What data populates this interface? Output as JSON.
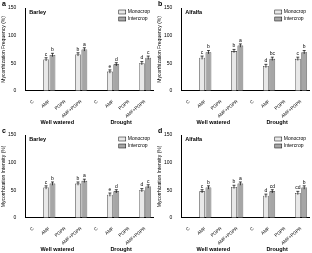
{
  "chart_data": [
    {
      "type": "bar",
      "panel": "a",
      "title": "Barley",
      "y_label": "Mycorrhization Frequency (%)",
      "categories": [
        "C",
        "AMF",
        "PGPR",
        "AMF+PGPR",
        "C",
        "AMF",
        "PGPR",
        "AMF+PGPR"
      ],
      "groups": [
        "Well watered",
        "Drought"
      ],
      "series": [
        {
          "name": "Monocrop",
          "color": "#e8e8e8",
          "values": [
            0,
            57,
            0,
            66,
            0,
            35,
            0,
            50
          ],
          "errors": [
            null,
            3,
            null,
            3,
            null,
            3,
            null,
            3
          ],
          "letters": [
            null,
            "c",
            null,
            "b",
            null,
            "e",
            null,
            "d"
          ]
        },
        {
          "name": "Intercrop",
          "color": "#a6a6a6",
          "values": [
            0,
            65,
            0,
            75,
            0,
            48,
            0,
            60
          ],
          "errors": [
            null,
            3,
            null,
            3,
            null,
            3,
            null,
            3
          ],
          "letters": [
            null,
            "b",
            null,
            "a",
            null,
            "d",
            null,
            "c"
          ]
        }
      ],
      "ylim": [
        0,
        150
      ],
      "yticks": [
        0,
        50,
        100,
        150
      ],
      "grid": false,
      "legend": "upper right"
    },
    {
      "type": "bar",
      "panel": "b",
      "title": "Alfalfa",
      "y_label": "Mycorrhization Frequency (%)",
      "categories": [
        "C",
        "AMF",
        "PGPR",
        "AMF+PGPR",
        "C",
        "AMF",
        "PGPR",
        "AMF+PGPR"
      ],
      "groups": [
        "Well watered",
        "Drought"
      ],
      "series": [
        {
          "name": "Monocrop",
          "color": "#e8e8e8",
          "values": [
            0,
            60,
            0,
            72,
            0,
            45,
            0,
            58
          ],
          "errors": [
            null,
            3,
            null,
            3,
            null,
            3,
            null,
            3
          ],
          "letters": [
            null,
            "c",
            null,
            "b",
            null,
            "d",
            null,
            "c"
          ]
        },
        {
          "name": "Intercrop",
          "color": "#a6a6a6",
          "values": [
            0,
            70,
            0,
            82,
            0,
            58,
            0,
            70
          ],
          "errors": [
            null,
            3,
            null,
            3,
            null,
            3,
            null,
            3
          ],
          "letters": [
            null,
            "b",
            null,
            "a",
            null,
            "bc",
            null,
            "b"
          ]
        }
      ],
      "ylim": [
        0,
        150
      ],
      "yticks": [
        0,
        50,
        100,
        150
      ],
      "grid": false,
      "legend": "upper right"
    },
    {
      "type": "bar",
      "panel": "c",
      "title": "Barley",
      "y_label": "Mycorrhization Intensity (%)",
      "categories": [
        "C",
        "AMF",
        "PGPR",
        "AMF+PGPR",
        "C",
        "AMF",
        "PGPR",
        "AMF+PGPR"
      ],
      "groups": [
        "Well watered",
        "Drought"
      ],
      "series": [
        {
          "name": "Monocrop",
          "color": "#e8e8e8",
          "values": [
            0,
            55,
            0,
            62,
            0,
            42,
            0,
            50
          ],
          "errors": [
            null,
            3,
            null,
            3,
            null,
            3,
            null,
            3
          ],
          "letters": [
            null,
            "c",
            null,
            "b",
            null,
            "e",
            null,
            "d"
          ]
        },
        {
          "name": "Intercrop",
          "color": "#a6a6a6",
          "values": [
            0,
            62,
            0,
            67,
            0,
            48,
            0,
            57
          ],
          "errors": [
            null,
            3,
            null,
            3,
            null,
            3,
            null,
            3
          ],
          "letters": [
            null,
            "b",
            null,
            "a",
            null,
            "d",
            null,
            "c"
          ]
        }
      ],
      "ylim": [
        0,
        150
      ],
      "yticks": [
        0,
        50,
        100,
        150
      ],
      "grid": false,
      "legend": "upper right"
    },
    {
      "type": "bar",
      "panel": "d",
      "title": "Alfalfa",
      "y_label": "Mycorrhization Intensity (%)",
      "categories": [
        "C",
        "AMF",
        "PGPR",
        "AMF+PGPR",
        "C",
        "AMF",
        "PGPR",
        "AMF+PGPR"
      ],
      "groups": [
        "Well watered",
        "Drought"
      ],
      "series": [
        {
          "name": "Monocrop",
          "color": "#e8e8e8",
          "values": [
            0,
            48,
            0,
            56,
            0,
            40,
            0,
            45
          ],
          "errors": [
            null,
            3,
            null,
            3,
            null,
            3,
            null,
            3
          ],
          "letters": [
            null,
            "c",
            null,
            "b",
            null,
            "d",
            null,
            "cd"
          ]
        },
        {
          "name": "Intercrop",
          "color": "#a6a6a6",
          "values": [
            0,
            55,
            0,
            62,
            0,
            48,
            0,
            55
          ],
          "errors": [
            null,
            3,
            null,
            3,
            null,
            3,
            null,
            3
          ],
          "letters": [
            null,
            "b",
            null,
            "a",
            null,
            "cd",
            null,
            "b"
          ]
        }
      ],
      "ylim": [
        0,
        150
      ],
      "yticks": [
        0,
        50,
        100,
        150
      ],
      "grid": false,
      "legend": "upper right"
    }
  ]
}
